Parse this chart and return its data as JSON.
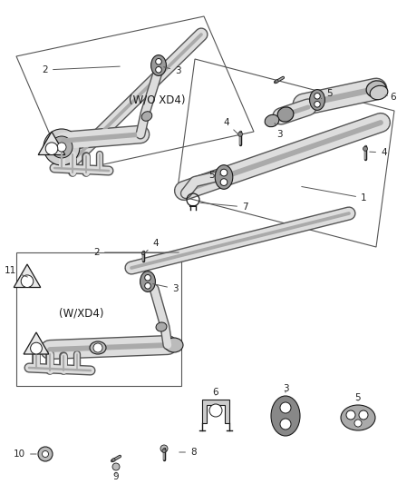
{
  "bg_color": "#ffffff",
  "line_color": "#1a1a1a",
  "label_color": "#222222",
  "box_color": "#444444",
  "pipe_dark": "#555555",
  "pipe_light": "#dddddd",
  "pipe_mid": "#aaaaaa",
  "fig_width": 4.38,
  "fig_height": 5.33,
  "dpi": 100,
  "labels": {
    "wo_xd4": "(W/O XD4)",
    "w_xd4": "(W/XD4)"
  }
}
